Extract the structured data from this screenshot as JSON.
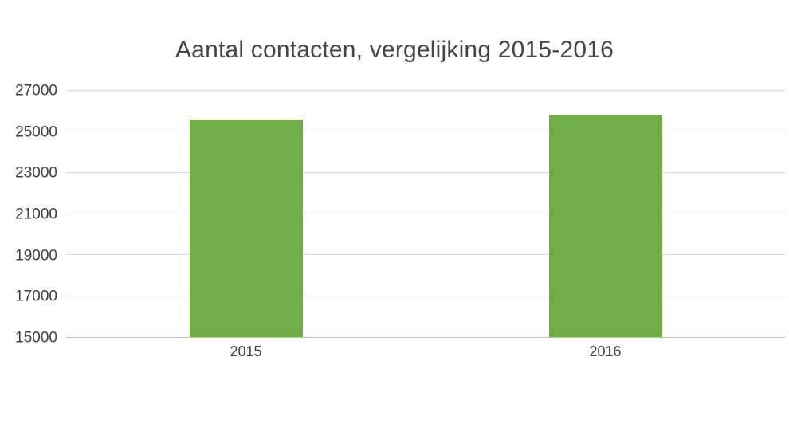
{
  "chart_data": {
    "type": "bar",
    "title": "Aantal contacten, vergelijking 2015-2016",
    "categories": [
      "2015",
      "2016"
    ],
    "values": [
      25550,
      25800
    ],
    "xlabel": "",
    "ylabel": "",
    "ylim": [
      15000,
      27000
    ],
    "yticks": [
      15000,
      17000,
      19000,
      21000,
      23000,
      25000,
      27000
    ],
    "grid": "horizontal",
    "legend": "none",
    "colors": {
      "bar": "#70AD47",
      "gridline": "#D9D9D9",
      "axis_line": "#BFBFBF",
      "title_text": "#454545",
      "tick_text": "#404040"
    }
  }
}
